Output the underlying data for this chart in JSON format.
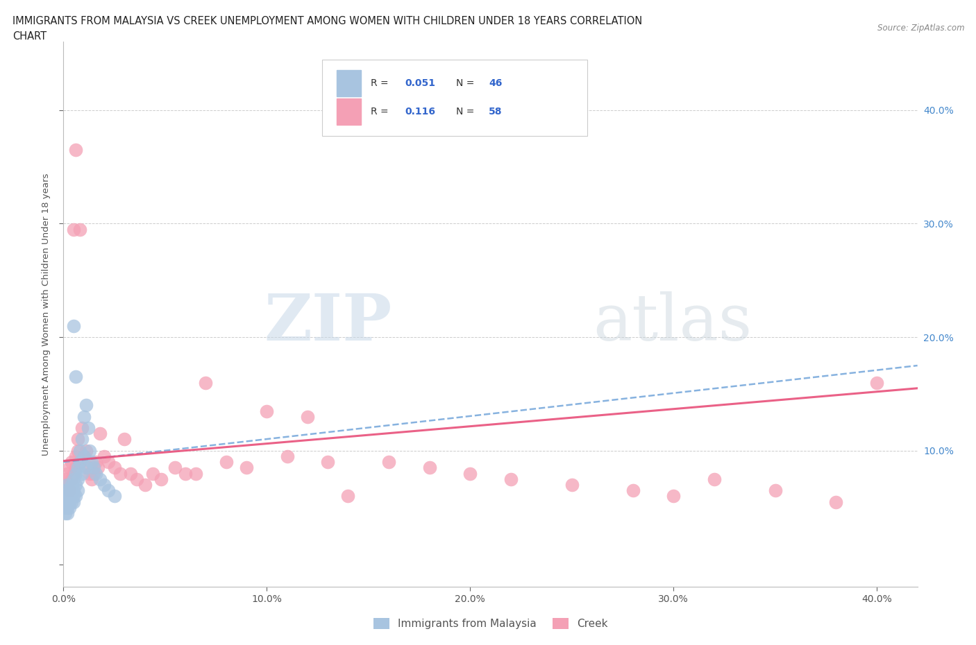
{
  "title_line1": "IMMIGRANTS FROM MALAYSIA VS CREEK UNEMPLOYMENT AMONG WOMEN WITH CHILDREN UNDER 18 YEARS CORRELATION",
  "title_line2": "CHART",
  "source": "Source: ZipAtlas.com",
  "ylabel": "Unemployment Among Women with Children Under 18 years",
  "xlim": [
    0.0,
    0.42
  ],
  "ylim": [
    -0.02,
    0.46
  ],
  "color_blue": "#a8c4e0",
  "color_pink": "#f4a0b5",
  "line_blue_color": "#7aaadc",
  "line_pink_color": "#e8507a",
  "legend_label1": "Immigrants from Malaysia",
  "legend_label2": "Creek",
  "blue_x": [
    0.001,
    0.001,
    0.001,
    0.001,
    0.001,
    0.002,
    0.002,
    0.002,
    0.002,
    0.002,
    0.003,
    0.003,
    0.003,
    0.003,
    0.004,
    0.004,
    0.004,
    0.005,
    0.005,
    0.005,
    0.005,
    0.006,
    0.006,
    0.006,
    0.007,
    0.007,
    0.007,
    0.008,
    0.008,
    0.009,
    0.009,
    0.01,
    0.01,
    0.011,
    0.011,
    0.012,
    0.013,
    0.014,
    0.015,
    0.016,
    0.018,
    0.02,
    0.022,
    0.025,
    0.005,
    0.006
  ],
  "blue_y": [
    0.06,
    0.055,
    0.05,
    0.065,
    0.045,
    0.06,
    0.055,
    0.05,
    0.07,
    0.045,
    0.065,
    0.055,
    0.05,
    0.06,
    0.065,
    0.055,
    0.07,
    0.06,
    0.075,
    0.055,
    0.065,
    0.07,
    0.06,
    0.08,
    0.065,
    0.075,
    0.085,
    0.09,
    0.1,
    0.08,
    0.11,
    0.095,
    0.13,
    0.085,
    0.14,
    0.12,
    0.1,
    0.09,
    0.085,
    0.08,
    0.075,
    0.07,
    0.065,
    0.06,
    0.21,
    0.165
  ],
  "pink_x": [
    0.001,
    0.002,
    0.002,
    0.003,
    0.003,
    0.004,
    0.004,
    0.005,
    0.005,
    0.006,
    0.006,
    0.007,
    0.007,
    0.008,
    0.009,
    0.01,
    0.011,
    0.012,
    0.013,
    0.014,
    0.015,
    0.016,
    0.017,
    0.018,
    0.02,
    0.022,
    0.025,
    0.028,
    0.03,
    0.033,
    0.036,
    0.04,
    0.044,
    0.048,
    0.055,
    0.06,
    0.065,
    0.07,
    0.08,
    0.09,
    0.1,
    0.11,
    0.12,
    0.13,
    0.14,
    0.16,
    0.18,
    0.2,
    0.22,
    0.25,
    0.28,
    0.3,
    0.32,
    0.35,
    0.38,
    0.4,
    0.006,
    0.008
  ],
  "pink_y": [
    0.075,
    0.07,
    0.08,
    0.065,
    0.085,
    0.09,
    0.075,
    0.295,
    0.08,
    0.085,
    0.095,
    0.1,
    0.11,
    0.09,
    0.12,
    0.095,
    0.1,
    0.085,
    0.08,
    0.075,
    0.08,
    0.09,
    0.085,
    0.115,
    0.095,
    0.09,
    0.085,
    0.08,
    0.11,
    0.08,
    0.075,
    0.07,
    0.08,
    0.075,
    0.085,
    0.08,
    0.08,
    0.16,
    0.09,
    0.085,
    0.135,
    0.095,
    0.13,
    0.09,
    0.06,
    0.09,
    0.085,
    0.08,
    0.075,
    0.07,
    0.065,
    0.06,
    0.075,
    0.065,
    0.055,
    0.16,
    0.365,
    0.295
  ],
  "blue_trend_x0": 0.0,
  "blue_trend_x1": 0.42,
  "blue_trend_y0": 0.09,
  "blue_trend_y1": 0.175,
  "pink_trend_x0": 0.0,
  "pink_trend_x1": 0.42,
  "pink_trend_y0": 0.091,
  "pink_trend_y1": 0.155
}
